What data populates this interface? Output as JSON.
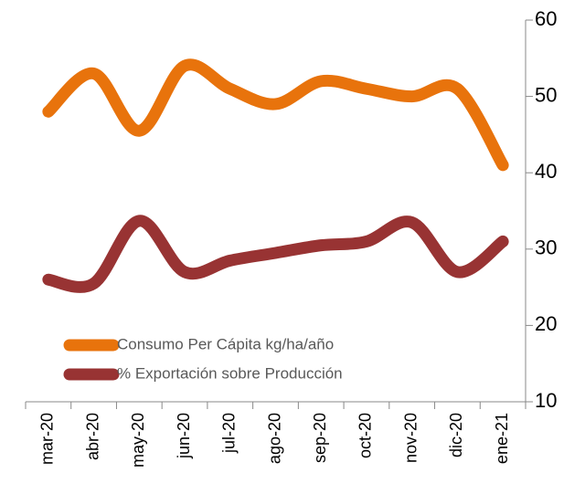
{
  "chart_data": {
    "type": "line",
    "categories": [
      "mar-20",
      "abr-20",
      "may-20",
      "jun-20",
      "jul-20",
      "ago-20",
      "sep-20",
      "oct-20",
      "nov-20",
      "dic-20",
      "ene-21"
    ],
    "series": [
      {
        "name": "Consumo Per Cápita kg/ha/año",
        "color": "#e8730c",
        "values": [
          48,
          53,
          45.5,
          54,
          51,
          49,
          52,
          51,
          50,
          51,
          41
        ]
      },
      {
        "name": "% Exportación sobre Producción",
        "color": "#983333",
        "values": [
          26,
          25.5,
          33.7,
          27,
          28.5,
          29.5,
          30.5,
          31,
          33.5,
          27,
          31
        ]
      }
    ],
    "ylim": [
      10,
      60
    ],
    "yticks": [
      10,
      20,
      30,
      40,
      50,
      60
    ],
    "legend": "lower-left"
  }
}
